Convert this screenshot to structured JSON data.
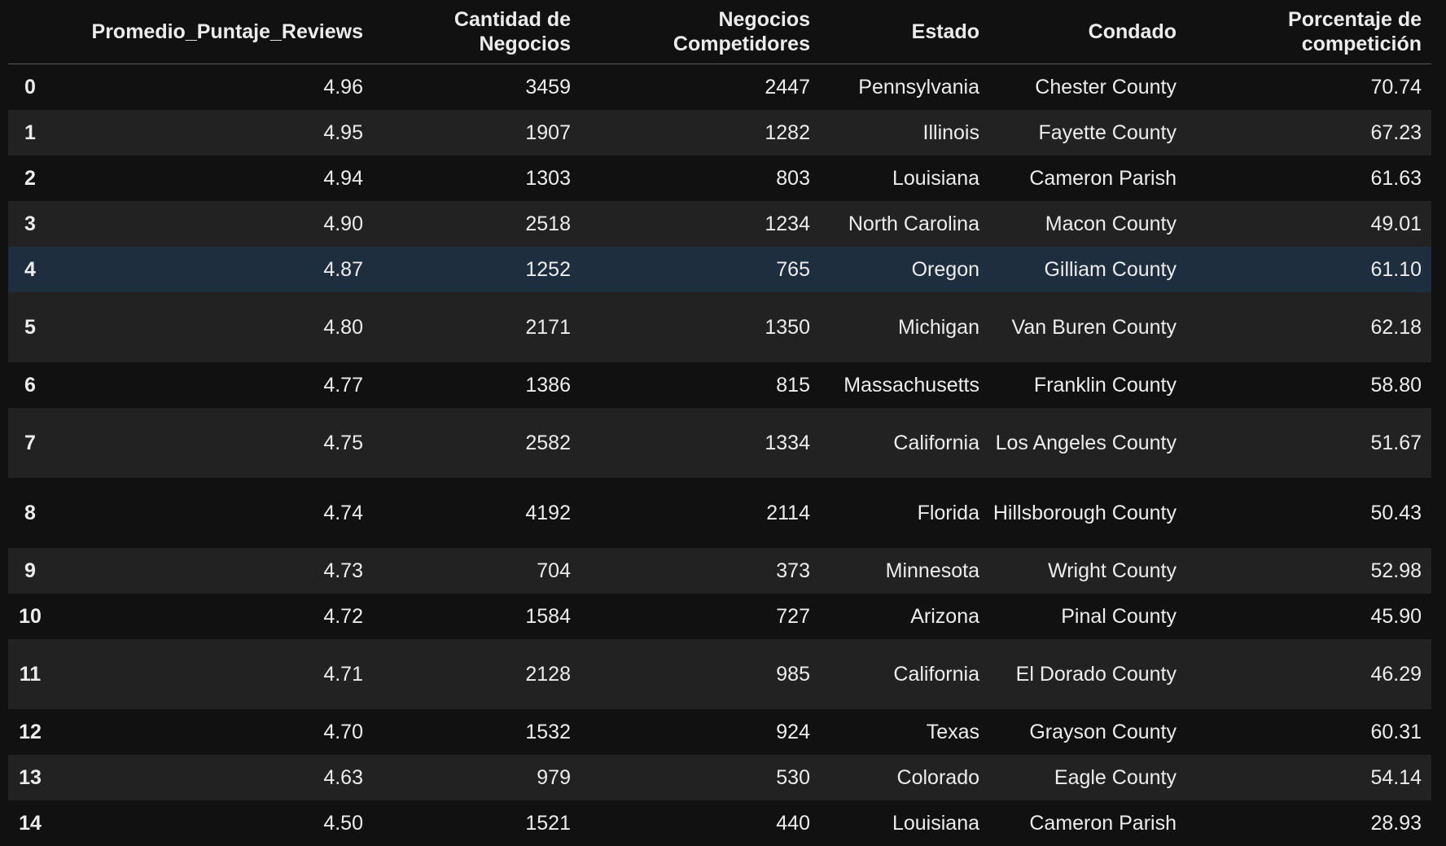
{
  "table": {
    "index_header": "",
    "columns": [
      "Promedio_Puntaje_Reviews",
      "Cantidad de Negocios",
      "Negocios Competidores",
      "Estado",
      "Condado",
      "Porcentaje de competición"
    ],
    "rows": [
      {
        "index": "0",
        "cells": [
          "4.96",
          "3459",
          "2447",
          "Pennsylvania",
          "Chester County",
          "70.74"
        ]
      },
      {
        "index": "1",
        "cells": [
          "4.95",
          "1907",
          "1282",
          "Illinois",
          "Fayette County",
          "67.23"
        ]
      },
      {
        "index": "2",
        "cells": [
          "4.94",
          "1303",
          "803",
          "Louisiana",
          "Cameron Parish",
          "61.63"
        ]
      },
      {
        "index": "3",
        "cells": [
          "4.90",
          "2518",
          "1234",
          "North Carolina",
          "Macon County",
          "49.01"
        ]
      },
      {
        "index": "4",
        "cells": [
          "4.87",
          "1252",
          "765",
          "Oregon",
          "Gilliam County",
          "61.10"
        ]
      },
      {
        "index": "5",
        "cells": [
          "4.80",
          "2171",
          "1350",
          "Michigan",
          "Van Buren County",
          "62.18"
        ]
      },
      {
        "index": "6",
        "cells": [
          "4.77",
          "1386",
          "815",
          "Massachusetts",
          "Franklin County",
          "58.80"
        ]
      },
      {
        "index": "7",
        "cells": [
          "4.75",
          "2582",
          "1334",
          "California",
          "Los Angeles County",
          "51.67"
        ]
      },
      {
        "index": "8",
        "cells": [
          "4.74",
          "4192",
          "2114",
          "Florida",
          "Hillsborough County",
          "50.43"
        ]
      },
      {
        "index": "9",
        "cells": [
          "4.73",
          "704",
          "373",
          "Minnesota",
          "Wright County",
          "52.98"
        ]
      },
      {
        "index": "10",
        "cells": [
          "4.72",
          "1584",
          "727",
          "Arizona",
          "Pinal County",
          "45.90"
        ]
      },
      {
        "index": "11",
        "cells": [
          "4.71",
          "2128",
          "985",
          "California",
          "El Dorado County",
          "46.29"
        ]
      },
      {
        "index": "12",
        "cells": [
          "4.70",
          "1532",
          "924",
          "Texas",
          "Grayson County",
          "60.31"
        ]
      },
      {
        "index": "13",
        "cells": [
          "4.63",
          "979",
          "530",
          "Colorado",
          "Eagle County",
          "54.14"
        ]
      },
      {
        "index": "14",
        "cells": [
          "4.50",
          "1521",
          "440",
          "Louisiana",
          "Cameron Parish",
          "28.93"
        ]
      }
    ],
    "hovered_row_index": "4"
  },
  "colors": {
    "background": "#111111",
    "row_alt": "#222222",
    "row_hover": "#1e2e3e",
    "text": "#ececec",
    "header_rule": "#5c5c5c"
  }
}
